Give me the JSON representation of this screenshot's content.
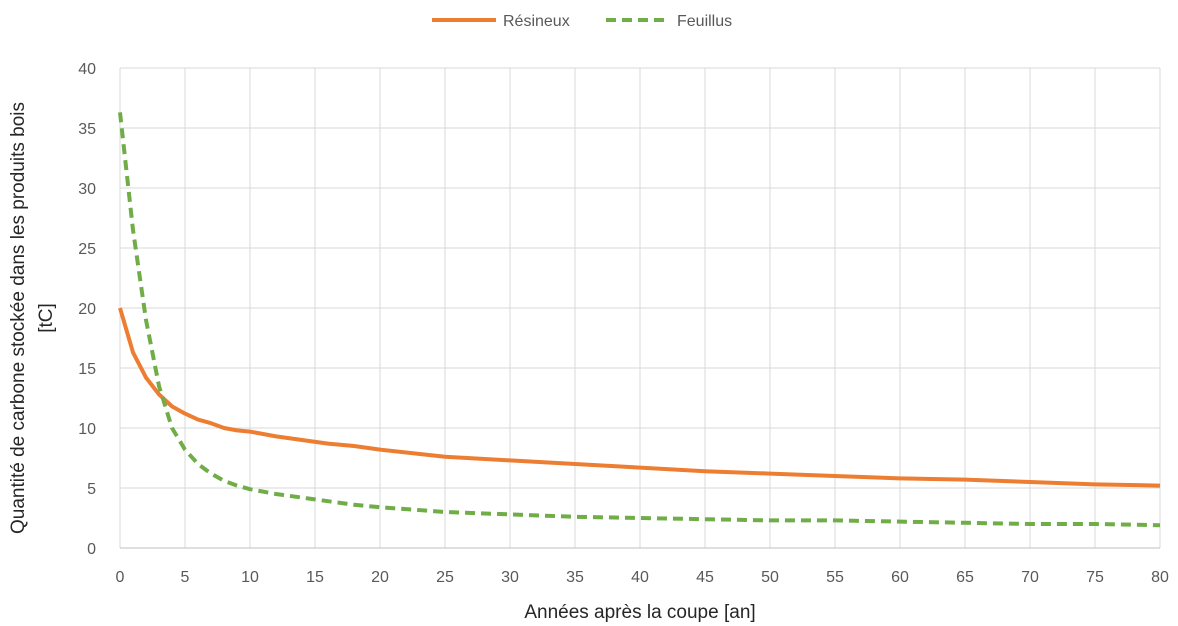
{
  "chart_data": {
    "type": "line",
    "title": "",
    "xlabel": "Années après la coupe [an]",
    "ylabel": "Quantité de carbone stockée dans les produits bois [tC]",
    "ylabel_lines": [
      "Quantité de carbone stockée dans les produits bois",
      "[tC]"
    ],
    "xlim": [
      0,
      80
    ],
    "ylim": [
      0,
      40
    ],
    "xticks": [
      0,
      5,
      10,
      15,
      20,
      25,
      30,
      35,
      40,
      45,
      50,
      55,
      60,
      65,
      70,
      75,
      80
    ],
    "yticks": [
      0,
      5,
      10,
      15,
      20,
      25,
      30,
      35,
      40
    ],
    "grid": true,
    "legend_position": "top-center",
    "x": [
      0,
      1,
      2,
      3,
      4,
      5,
      6,
      7,
      8,
      9,
      10,
      12,
      14,
      16,
      18,
      20,
      25,
      30,
      35,
      40,
      45,
      50,
      55,
      60,
      65,
      70,
      75,
      80
    ],
    "series": [
      {
        "name": "Résineux",
        "color": "#ed7d31",
        "style": "solid",
        "values": [
          20.0,
          16.3,
          14.2,
          12.8,
          11.8,
          11.2,
          10.7,
          10.4,
          10.0,
          9.8,
          9.7,
          9.3,
          9.0,
          8.7,
          8.5,
          8.2,
          7.6,
          7.3,
          7.0,
          6.7,
          6.4,
          6.2,
          6.0,
          5.8,
          5.7,
          5.5,
          5.3,
          5.2
        ]
      },
      {
        "name": "Feuillus",
        "color": "#70ad47",
        "style": "dashed",
        "values": [
          36.3,
          26.5,
          19.0,
          13.5,
          10.0,
          8.2,
          7.0,
          6.2,
          5.6,
          5.2,
          4.9,
          4.5,
          4.2,
          3.9,
          3.6,
          3.4,
          3.0,
          2.8,
          2.6,
          2.5,
          2.4,
          2.3,
          2.3,
          2.2,
          2.1,
          2.0,
          2.0,
          1.9
        ]
      }
    ]
  }
}
